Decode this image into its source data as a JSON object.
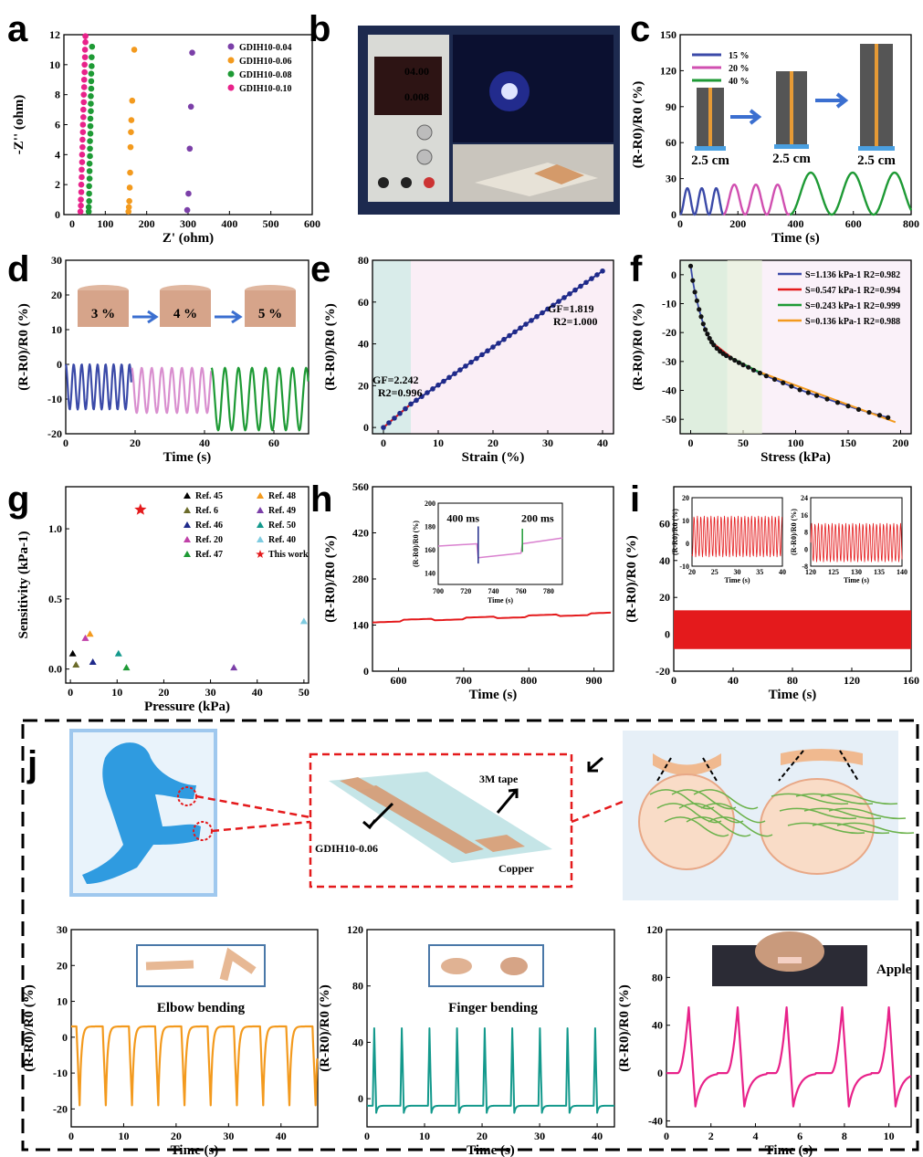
{
  "panel_labels": [
    "a",
    "b",
    "c",
    "d",
    "e",
    "f",
    "g",
    "h",
    "i",
    "j"
  ],
  "colors": {
    "purple": "#7b3fa8",
    "orange": "#f39a1e",
    "green": "#1e9a35",
    "pink": "#e8228a",
    "blue": "#3b4aa8",
    "lightpink": "#d98fcf",
    "darkgreen": "#1a8a2a",
    "red": "#e41a1c",
    "teal": "#13998c",
    "navy": "#1f2a8a",
    "dashedframe": "#e41a1c"
  },
  "b": {
    "voltage": "04.00",
    "current": "0.008"
  },
  "j": {
    "label_tape": "3M tape",
    "label_gdih": "GDIH10-0.06",
    "label_copper": "Copper",
    "elbow_text": "Elbow bending",
    "finger_text": "Finger bending",
    "apple_text": "Apple"
  },
  "chart_data": [
    {
      "id": "a",
      "type": "scatter",
      "xlabel": "Z' (ohm)",
      "ylabel": "-Z'' (ohm)",
      "xlim": [
        0,
        600
      ],
      "ylim": [
        0,
        12
      ],
      "xticks": [
        100,
        200,
        300,
        400,
        500,
        600
      ],
      "yticks": [
        0,
        2,
        4,
        6,
        8,
        10,
        12
      ],
      "series": [
        {
          "name": "GDIH10-0.04",
          "color": "#7b3fa8",
          "x": [
            298,
            301,
            304,
            307,
            310
          ],
          "y": [
            0.3,
            1.4,
            4.4,
            7.2,
            10.8
          ]
        },
        {
          "name": "GDIH10-0.06",
          "color": "#f39a1e",
          "x": [
            156,
            157,
            158,
            159,
            160,
            161,
            162,
            163,
            165,
            170
          ],
          "y": [
            0.2,
            0.5,
            0.9,
            1.8,
            2.8,
            4.5,
            5.5,
            6.3,
            7.6,
            11
          ]
        },
        {
          "name": "GDIH10-0.08",
          "color": "#1e9a35",
          "x": [
            60,
            60,
            61,
            61,
            61,
            62,
            62,
            62,
            63,
            63,
            63,
            64,
            64,
            64,
            65,
            65,
            65,
            66,
            66,
            66,
            67,
            67,
            68
          ],
          "y": [
            0.2,
            0.5,
            0.9,
            1.4,
            1.9,
            2.4,
            2.9,
            3.4,
            3.9,
            4.4,
            4.9,
            5.4,
            5.9,
            6.4,
            6.9,
            7.4,
            7.9,
            8.4,
            8.9,
            9.4,
            9.9,
            10.5,
            11.2
          ]
        },
        {
          "name": "GDIH10-0.10",
          "color": "#e8228a",
          "x": [
            40,
            41,
            41,
            42,
            42,
            43,
            43,
            44,
            44,
            45,
            45,
            46,
            46,
            47,
            47,
            48,
            48,
            49,
            49,
            50,
            50,
            51,
            51,
            52,
            52
          ],
          "y": [
            0.2,
            0.6,
            1.0,
            1.5,
            2.0,
            2.5,
            3.0,
            3.5,
            4.0,
            4.5,
            5.0,
            5.5,
            6.0,
            6.5,
            7.0,
            7.5,
            8.0,
            8.5,
            9.0,
            9.5,
            10.0,
            10.5,
            11.0,
            11.5,
            11.9
          ]
        }
      ]
    },
    {
      "id": "c",
      "type": "line",
      "xlabel": "Time (s)",
      "ylabel": "(R-R0)/R0 (%)",
      "xlim": [
        0,
        800
      ],
      "ylim": [
        0,
        150
      ],
      "xticks": [
        0,
        200,
        400,
        600,
        800
      ],
      "yticks": [
        0,
        30,
        60,
        90,
        120,
        150
      ],
      "insets": [
        "2.5 cm",
        "2.5 cm",
        "2.5 cm"
      ],
      "series": [
        {
          "name": "15 %",
          "color": "#3b4aa8",
          "segment": [
            0,
            150
          ],
          "amplitude": 22,
          "period": 50
        },
        {
          "name": "20 %",
          "color": "#d04fb0",
          "segment": [
            150,
            380
          ],
          "amplitude": 25,
          "period": 75
        },
        {
          "name": "40 %",
          "color": "#1e9a35",
          "segment": [
            380,
            800
          ],
          "amplitude": 35,
          "period": 145
        }
      ]
    },
    {
      "id": "d",
      "type": "line",
      "xlabel": "Time (s)",
      "ylabel": "(R-R0)/R0 (%)",
      "xlim": [
        0,
        70
      ],
      "ylim": [
        -20,
        30
      ],
      "xticks": [
        0,
        20,
        40,
        60
      ],
      "yticks": [
        -20,
        -10,
        0,
        10,
        20,
        30
      ],
      "insets": [
        "3 %",
        "4 %",
        "5 %"
      ],
      "series": [
        {
          "name": "3 %",
          "color": "#3b4aa8",
          "segment": [
            0,
            19
          ],
          "min": -13,
          "max": 0,
          "period": 2.3
        },
        {
          "name": "4 %",
          "color": "#d98fcf",
          "segment": [
            19,
            42
          ],
          "min": -14,
          "max": -1,
          "period": 2.9
        },
        {
          "name": "5 %",
          "color": "#1e9a35",
          "segment": [
            42,
            70
          ],
          "min": -19,
          "max": -1,
          "period": 3.9
        }
      ]
    },
    {
      "id": "e",
      "type": "scatter",
      "xlabel": "Strain (%)",
      "ylabel": "(R-R0)/R0 (%)",
      "xlim": [
        -2,
        42
      ],
      "ylim": [
        -3,
        80
      ],
      "xticks": [
        0,
        10,
        20,
        30,
        40
      ],
      "yticks": [
        0,
        20,
        40,
        60,
        80
      ],
      "annotations": [
        {
          "text": "GF=1.819",
          "x": 30,
          "y": 55
        },
        {
          "text": "R2=1.000",
          "x": 31,
          "y": 49
        },
        {
          "text": "GF=2.242",
          "x": -2,
          "y": 21
        },
        {
          "text": "R2=0.996",
          "x": -1,
          "y": 15
        }
      ],
      "regions": [
        {
          "x": [
            -2,
            5
          ],
          "color": "#d9ecea"
        },
        {
          "x": [
            5,
            42
          ],
          "color": "#faeef6"
        }
      ],
      "fit": [
        {
          "range": [
            0,
            5
          ],
          "slope": 2.242,
          "color": "#e41a1c"
        },
        {
          "range": [
            5,
            40
          ],
          "slope": 1.819,
          "offset": -1.6,
          "color": "#1f2a8a"
        }
      ]
    },
    {
      "id": "f",
      "type": "scatter",
      "xlabel": "Stress (kPa)",
      "ylabel": "(R-R0)/R0 (%)",
      "xlim": [
        -10,
        210
      ],
      "ylim": [
        -55,
        5
      ],
      "xticks": [
        0,
        50,
        100,
        150,
        200
      ],
      "yticks": [
        -50,
        -40,
        -30,
        -20,
        -10,
        0
      ],
      "legend": [
        {
          "text": "S=1.136 kPa-1 R2=0.982",
          "color": "#3b4aa8"
        },
        {
          "text": "S=0.547 kPa-1 R2=0.994",
          "color": "#e41a1c"
        },
        {
          "text": "S=0.243 kPa-1 R2=0.999",
          "color": "#1e9a35"
        },
        {
          "text": "S=0.136 kPa-1 R2=0.988",
          "color": "#f39a1e"
        }
      ],
      "points": {
        "x": [
          0,
          2,
          4,
          6,
          8,
          10,
          12,
          14,
          16,
          18,
          20,
          22,
          25,
          28,
          31,
          34,
          38,
          42,
          46,
          50,
          55,
          60,
          66,
          72,
          80,
          88,
          96,
          104,
          112,
          120,
          130,
          140,
          150,
          160,
          170,
          180,
          188
        ],
        "y": [
          3,
          -2,
          -6,
          -9,
          -12,
          -14.5,
          -17,
          -19,
          -20.5,
          -22,
          -23.3,
          -24.3,
          -25.5,
          -26.5,
          -27.3,
          -28,
          -28.8,
          -29.6,
          -30.4,
          -31.2,
          -32,
          -33,
          -34,
          -35,
          -36.2,
          -37.4,
          -38.6,
          -39.8,
          -40.8,
          -41.8,
          -43,
          -44.2,
          -45.4,
          -46.6,
          -47.6,
          -48.6,
          -49.4
        ]
      }
    },
    {
      "id": "g",
      "type": "scatter",
      "xlabel": "Pressure (kPa)",
      "ylabel": "Sensitivity (kPa-1)",
      "xlim": [
        -1,
        51
      ],
      "ylim": [
        -0.1,
        1.3
      ],
      "xticks": [
        0,
        10,
        20,
        30,
        40,
        50
      ],
      "yticks": [
        0.0,
        0.5,
        1.0
      ],
      "series": [
        {
          "name": "Ref. 45",
          "color": "#000000",
          "x": [
            0.5
          ],
          "y": [
            0.11
          ]
        },
        {
          "name": "Ref. 6",
          "color": "#6b6b2a",
          "x": [
            1.2
          ],
          "y": [
            0.03
          ]
        },
        {
          "name": "Ref. 46",
          "color": "#1f2a8a",
          "x": [
            4.8
          ],
          "y": [
            0.05
          ]
        },
        {
          "name": "Ref. 20",
          "color": "#c040a8",
          "x": [
            3.2
          ],
          "y": [
            0.22
          ]
        },
        {
          "name": "Ref. 47",
          "color": "#1e9a35",
          "x": [
            12
          ],
          "y": [
            0.01
          ]
        },
        {
          "name": "Ref. 48",
          "color": "#f39a1e",
          "x": [
            4.2
          ],
          "y": [
            0.25
          ]
        },
        {
          "name": "Ref. 49",
          "color": "#7b3fa8",
          "x": [
            35
          ],
          "y": [
            0.01
          ]
        },
        {
          "name": "Ref. 50",
          "color": "#13998c",
          "x": [
            10.3
          ],
          "y": [
            0.11
          ]
        },
        {
          "name": "Ref. 40",
          "color": "#7ecbe0",
          "x": [
            50
          ],
          "y": [
            0.34
          ]
        },
        {
          "name": "This work",
          "color": "#e41a1c",
          "x": [
            15
          ],
          "y": [
            1.136
          ]
        }
      ]
    },
    {
      "id": "h",
      "type": "line",
      "xlabel": "Time (s)",
      "ylabel": "(R-R0)/R0 (%)",
      "xlim": [
        560,
        930
      ],
      "ylim": [
        0,
        560
      ],
      "xticks": [
        600,
        700,
        800,
        900
      ],
      "yticks": [
        0,
        140,
        280,
        420,
        560
      ],
      "series": [
        {
          "name": "",
          "color": "#e41a1c",
          "x": [
            560,
            930
          ],
          "y": [
            150,
            175
          ]
        }
      ],
      "inset": {
        "xlim": [
          700,
          790
        ],
        "ylim": [
          130,
          200
        ],
        "xticks": [
          700,
          720,
          740,
          760,
          780
        ],
        "yticks": [
          140,
          160,
          180,
          200
        ],
        "annotations": [
          "400 ms",
          "200 ms"
        ]
      }
    },
    {
      "id": "i",
      "type": "line",
      "xlabel": "Time (s)",
      "ylabel": "(R-R0)/R0 (%)",
      "xlim": [
        0,
        160
      ],
      "ylim": [
        -20,
        80
      ],
      "xticks": [
        0,
        40,
        80,
        120,
        160
      ],
      "yticks": [
        -20,
        0,
        20,
        40,
        60
      ],
      "series": [
        {
          "name": "",
          "color": "#e41a1c",
          "band": [
            -8,
            12
          ]
        }
      ],
      "insets": [
        {
          "xlim": [
            20,
            40
          ],
          "ylim": [
            -10,
            20
          ],
          "xticks": [
            20,
            25,
            30,
            35,
            40
          ],
          "yticks": [
            -10,
            0,
            10,
            20
          ]
        },
        {
          "xlim": [
            120,
            140
          ],
          "ylim": [
            -8,
            24
          ],
          "xticks": [
            120,
            125,
            130,
            135,
            140
          ],
          "yticks": [
            -8,
            0,
            8,
            16,
            24
          ]
        }
      ]
    },
    {
      "id": "j1",
      "type": "line",
      "xlabel": "Time (s)",
      "ylabel": "(R-R0)/R0 (%)",
      "xlim": [
        0,
        47
      ],
      "ylim": [
        -25,
        30
      ],
      "xticks": [
        0,
        10,
        20,
        30,
        40
      ],
      "yticks": [
        -20,
        -10,
        0,
        10,
        20,
        30
      ],
      "series": [
        {
          "name": "",
          "color": "#f39a1e",
          "min": -19,
          "max": 3,
          "period": 5
        }
      ]
    },
    {
      "id": "j2",
      "type": "line",
      "xlabel": "Time (s)",
      "ylabel": "(R-R0)/R0 (%)",
      "xlim": [
        0,
        43
      ],
      "ylim": [
        -20,
        120
      ],
      "xticks": [
        0,
        10,
        20,
        30,
        40
      ],
      "yticks": [
        0,
        40,
        80,
        120
      ],
      "series": [
        {
          "name": "",
          "color": "#13998c",
          "min": -5,
          "max": 50,
          "period": 4.8
        }
      ]
    },
    {
      "id": "j3",
      "type": "line",
      "xlabel": "Time (s)",
      "ylabel": "(R-R0)/R0 (%)",
      "xlim": [
        0,
        11
      ],
      "ylim": [
        -45,
        120
      ],
      "xticks": [
        0,
        2,
        4,
        6,
        8,
        10
      ],
      "yticks": [
        -40,
        0,
        40,
        80,
        120
      ],
      "series": [
        {
          "name": "",
          "color": "#e8228a",
          "peaks": [
            1.0,
            3.2,
            5.4,
            7.9,
            10.0
          ],
          "max": 55,
          "min": -28
        }
      ]
    }
  ]
}
